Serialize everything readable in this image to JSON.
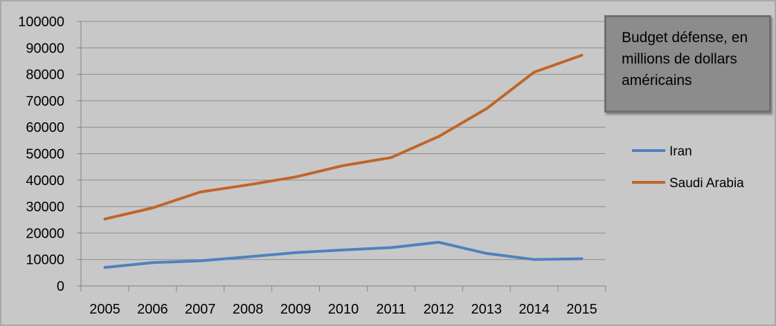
{
  "chart_data": {
    "type": "line",
    "title": "Budget défense, en millions de dollars américains",
    "xlabel": "",
    "ylabel": "",
    "x": [
      "2005",
      "2006",
      "2007",
      "2008",
      "2009",
      "2010",
      "2011",
      "2012",
      "2013",
      "2014",
      "2015"
    ],
    "ylim": [
      0,
      100000
    ],
    "yticks": [
      0,
      10000,
      20000,
      30000,
      40000,
      50000,
      60000,
      70000,
      80000,
      90000,
      100000
    ],
    "grid": true,
    "legend_position": "right",
    "series": [
      {
        "name": "Iran",
        "color": "#4f81bd",
        "values": [
          7000,
          8800,
          9500,
          11000,
          12600,
          13600,
          14500,
          16500,
          12300,
          10000,
          10300
        ]
      },
      {
        "name": "Saudi Arabia",
        "color": "#c0652a",
        "values": [
          25300,
          29500,
          35500,
          38200,
          41200,
          45500,
          48500,
          56500,
          67000,
          80800,
          87200
        ]
      }
    ]
  }
}
